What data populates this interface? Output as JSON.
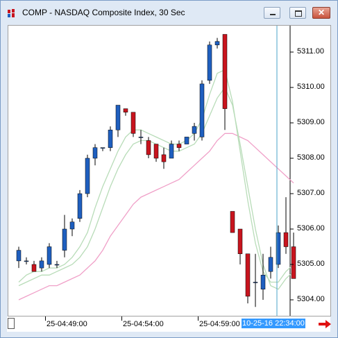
{
  "window": {
    "title": "COMP - NASDAQ Composite Index, 30 Sec",
    "buttons": {
      "minimize": "minimize",
      "maximize": "maximize",
      "close": "✕"
    }
  },
  "chart": {
    "price_labels": [
      "5311.00",
      "5310.00",
      "5309.00",
      "5308.00",
      "5307.00",
      "5306.00",
      "5305.00",
      "5304.00"
    ],
    "time_labels": [
      "25-04:49:00",
      "25-04:54:00",
      "25-04:59:00"
    ],
    "cursor_time": "10-25-16 22:34:00"
  },
  "colors": {
    "up": "#1f5fbf",
    "down": "#c8141e",
    "ma_fast": "#b8dcb8",
    "ma_slow": "#f0a0c8",
    "cursor": "#4aa3c8"
  },
  "chart_data": {
    "type": "candlestick",
    "ylim": [
      5303.6,
      5311.8
    ],
    "candles": [
      {
        "o": 5305.1,
        "h": 5305.5,
        "l": 5304.9,
        "c": 5305.4
      },
      {
        "o": 5305.1,
        "h": 5305.2,
        "l": 5305.0,
        "c": 5305.1
      },
      {
        "o": 5305.0,
        "h": 5305.1,
        "l": 5304.8,
        "c": 5304.8
      },
      {
        "o": 5304.9,
        "h": 5305.2,
        "l": 5304.8,
        "c": 5305.1
      },
      {
        "o": 5305.0,
        "h": 5305.6,
        "l": 5304.9,
        "c": 5305.5
      },
      {
        "o": 5305.0,
        "h": 5305.1,
        "l": 5304.9,
        "c": 5305.0
      },
      {
        "o": 5305.4,
        "h": 5306.4,
        "l": 5305.2,
        "c": 5306.0
      },
      {
        "o": 5306.0,
        "h": 5306.3,
        "l": 5305.8,
        "c": 5306.2
      },
      {
        "o": 5306.3,
        "h": 5307.1,
        "l": 5306.2,
        "c": 5307.0
      },
      {
        "o": 5307.0,
        "h": 5308.1,
        "l": 5306.9,
        "c": 5308.0
      },
      {
        "o": 5308.0,
        "h": 5308.4,
        "l": 5307.8,
        "c": 5308.3
      },
      {
        "o": 5308.3,
        "h": 5308.3,
        "l": 5308.2,
        "c": 5308.3
      },
      {
        "o": 5308.3,
        "h": 5308.9,
        "l": 5308.2,
        "c": 5308.8
      },
      {
        "o": 5308.8,
        "h": 5309.5,
        "l": 5308.6,
        "c": 5309.5
      },
      {
        "o": 5309.4,
        "h": 5309.4,
        "l": 5309.2,
        "c": 5309.3
      },
      {
        "o": 5309.3,
        "h": 5309.3,
        "l": 5308.6,
        "c": 5308.7
      },
      {
        "o": 5308.6,
        "h": 5308.8,
        "l": 5308.4,
        "c": 5308.6
      },
      {
        "o": 5308.5,
        "h": 5308.6,
        "l": 5308.0,
        "c": 5308.1
      },
      {
        "o": 5308.4,
        "h": 5308.4,
        "l": 5307.9,
        "c": 5308.0
      },
      {
        "o": 5308.1,
        "h": 5308.3,
        "l": 5307.7,
        "c": 5307.9
      },
      {
        "o": 5308.0,
        "h": 5308.5,
        "l": 5308.0,
        "c": 5308.4
      },
      {
        "o": 5308.4,
        "h": 5308.5,
        "l": 5308.2,
        "c": 5308.3
      },
      {
        "o": 5308.4,
        "h": 5308.6,
        "l": 5308.4,
        "c": 5308.6
      },
      {
        "o": 5308.7,
        "h": 5309.0,
        "l": 5308.5,
        "c": 5308.9
      },
      {
        "o": 5308.6,
        "h": 5310.2,
        "l": 5308.5,
        "c": 5310.1
      },
      {
        "o": 5310.2,
        "h": 5311.3,
        "l": 5310.1,
        "c": 5311.2
      },
      {
        "o": 5311.2,
        "h": 5311.4,
        "l": 5311.1,
        "c": 5311.3
      },
      {
        "o": 5311.5,
        "h": 5311.5,
        "l": 5308.8,
        "c": 5309.4
      },
      {
        "o": 5306.5,
        "h": 5306.5,
        "l": 5305.9,
        "c": 5305.9
      },
      {
        "o": 5306.0,
        "h": 5306.0,
        "l": 5305.0,
        "c": 5305.3
      },
      {
        "o": 5305.3,
        "h": 5305.3,
        "l": 5303.9,
        "c": 5304.1
      },
      {
        "o": 5304.5,
        "h": 5305.3,
        "l": 5303.8,
        "c": 5304.5
      },
      {
        "o": 5304.3,
        "h": 5305.3,
        "l": 5304.0,
        "c": 5304.7
      },
      {
        "o": 5304.8,
        "h": 5305.5,
        "l": 5304.6,
        "c": 5305.2
      },
      {
        "o": 5305.0,
        "h": 5306.1,
        "l": 5304.9,
        "c": 5305.9
      },
      {
        "o": 5305.9,
        "h": 5306.9,
        "l": 5305.3,
        "c": 5305.5
      },
      {
        "o": 5305.5,
        "h": 5305.9,
        "l": 5304.6,
        "c": 5304.6
      }
    ],
    "ma_fast": [
      5304.5,
      5304.7,
      5304.8,
      5304.8,
      5304.9,
      5304.9,
      5305.0,
      5305.2,
      5305.5,
      5305.9,
      5306.6,
      5307.2,
      5307.7,
      5308.2,
      5308.6,
      5308.8,
      5308.8,
      5308.7,
      5308.6,
      5308.5,
      5308.4,
      5308.4,
      5308.5,
      5308.7,
      5309.1,
      5309.8,
      5310.4,
      5310.5,
      5309.6,
      5308.2,
      5306.8,
      5305.6,
      5304.8,
      5304.5,
      5304.5,
      5304.8,
      5305.0
    ],
    "ma_mid": [
      5304.4,
      5304.5,
      5304.6,
      5304.7,
      5304.7,
      5304.8,
      5304.9,
      5305.0,
      5305.2,
      5305.5,
      5306.0,
      5306.6,
      5307.2,
      5307.7,
      5308.1,
      5308.4,
      5308.5,
      5308.5,
      5308.4,
      5308.3,
      5308.2,
      5308.2,
      5308.3,
      5308.4,
      5308.7,
      5309.2,
      5309.7,
      5310.0,
      5309.5,
      5308.4,
      5307.2,
      5306.0,
      5305.0,
      5304.4,
      5304.3,
      5304.6,
      5304.8
    ],
    "ma_slow": [
      5304.0,
      5304.1,
      5304.2,
      5304.3,
      5304.4,
      5304.4,
      5304.5,
      5304.6,
      5304.7,
      5304.9,
      5305.1,
      5305.4,
      5305.8,
      5306.1,
      5306.4,
      5306.7,
      5306.9,
      5307.0,
      5307.1,
      5307.2,
      5307.3,
      5307.4,
      5307.6,
      5307.8,
      5308.0,
      5308.2,
      5308.5,
      5308.7,
      5308.7,
      5308.6,
      5308.5,
      5308.3,
      5308.1,
      5307.9,
      5307.7,
      5307.5,
      5307.3
    ]
  }
}
